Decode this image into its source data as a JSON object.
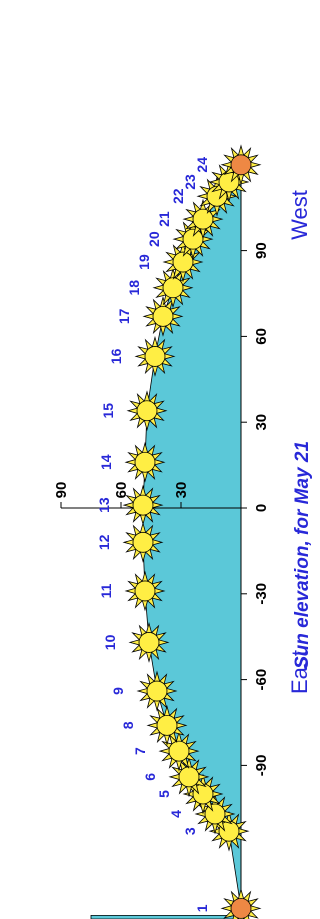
{
  "chart_data": {
    "type": "area",
    "title": "Sun elevation, for May 21",
    "rotation": "rotated 90° clockwise (x axis runs top-to-bottom, elevation to the right)",
    "x_axis": {
      "ticks": [
        -90,
        -60,
        -30,
        0,
        30,
        60,
        90
      ],
      "tick_labels": [
        "-90",
        "-60",
        "-30",
        "0",
        "30",
        "60",
        "90"
      ],
      "range": [
        -140,
        120
      ]
    },
    "direction_labels": {
      "left": "East",
      "right": "West"
    },
    "y_axis": {
      "ticks": [
        30,
        60,
        90
      ],
      "tick_labels": [
        "30",
        "60",
        "90"
      ],
      "range": [
        0,
        90
      ]
    },
    "hours": [
      "1",
      "3",
      "4",
      "5",
      "6",
      "7",
      "8",
      "9",
      "10",
      "11",
      "12",
      "13",
      "14",
      "15",
      "16",
      "17",
      "18",
      "19",
      "20",
      "21",
      "22",
      "23",
      "24"
    ],
    "points": [
      {
        "hour": "1",
        "azimuth": -140,
        "elevation": 0,
        "night": true
      },
      {
        "hour": "3",
        "azimuth": -113,
        "elevation": 6
      },
      {
        "hour": "4",
        "azimuth": -107,
        "elevation": 13
      },
      {
        "hour": "5",
        "azimuth": -100,
        "elevation": 19
      },
      {
        "hour": "6",
        "azimuth": -94,
        "elevation": 26
      },
      {
        "hour": "7",
        "azimuth": -85,
        "elevation": 31
      },
      {
        "hour": "8",
        "azimuth": -76,
        "elevation": 37
      },
      {
        "hour": "9",
        "azimuth": -64,
        "elevation": 42
      },
      {
        "hour": "10",
        "azimuth": -47,
        "elevation": 46
      },
      {
        "hour": "11",
        "azimuth": -29,
        "elevation": 48
      },
      {
        "hour": "12",
        "azimuth": -12,
        "elevation": 49
      },
      {
        "hour": "13",
        "azimuth": 1,
        "elevation": 49
      },
      {
        "hour": "14",
        "azimuth": 16,
        "elevation": 48
      },
      {
        "hour": "15",
        "azimuth": 34,
        "elevation": 47
      },
      {
        "hour": "16",
        "azimuth": 53,
        "elevation": 43
      },
      {
        "hour": "17",
        "azimuth": 67,
        "elevation": 39
      },
      {
        "hour": "18",
        "azimuth": 77,
        "elevation": 34
      },
      {
        "hour": "19",
        "azimuth": 86,
        "elevation": 29
      },
      {
        "hour": "20",
        "azimuth": 94,
        "elevation": 24
      },
      {
        "hour": "21",
        "azimuth": 101,
        "elevation": 19
      },
      {
        "hour": "22",
        "azimuth": 109,
        "elevation": 12
      },
      {
        "hour": "23",
        "azimuth": 114,
        "elevation": 6
      },
      {
        "hour": "24",
        "azimuth": 120,
        "elevation": 0,
        "night": true
      }
    ],
    "left_band": {
      "elevation": 75
    },
    "colors": {
      "area_fill": "#5bc8d8",
      "sun_fill": "#ffee44",
      "night_sun_fill": "#ee8844",
      "ray_fill": "#ffee44",
      "label": "#2828d8",
      "axis": "#000000"
    }
  }
}
